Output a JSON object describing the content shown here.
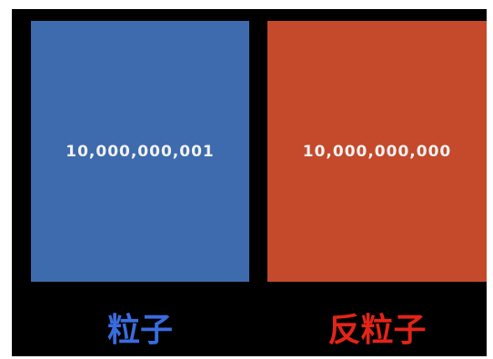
{
  "colors": {
    "background": "#000000",
    "particle_box": "#3e6bad",
    "antiparticle_box": "#c44a2b",
    "particle_label": "#3a6ce0",
    "antiparticle_label": "#e42418"
  },
  "particle": {
    "count": "10,000,000,001",
    "label": "粒子"
  },
  "antiparticle": {
    "count": "10,000,000,000",
    "label": "反粒子"
  }
}
